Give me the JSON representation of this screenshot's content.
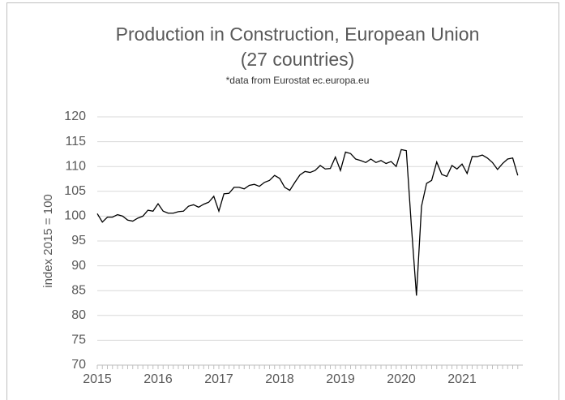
{
  "chart_data": {
    "type": "line",
    "title": "Production in Construction, European Union",
    "title_line2": "(27 countries)",
    "subtitle": "*data from Eurostat ec.europa.eu",
    "y_label": "index 2015 = 100",
    "categories": [
      "2015",
      null,
      null,
      null,
      null,
      null,
      null,
      null,
      null,
      null,
      null,
      null,
      "2016",
      null,
      null,
      null,
      null,
      null,
      null,
      null,
      null,
      null,
      null,
      null,
      "2017",
      null,
      null,
      null,
      null,
      null,
      null,
      null,
      null,
      null,
      null,
      null,
      "2018",
      null,
      null,
      null,
      null,
      null,
      null,
      null,
      null,
      null,
      null,
      null,
      "2019",
      null,
      null,
      null,
      null,
      null,
      null,
      null,
      null,
      null,
      null,
      null,
      "2020",
      null,
      null,
      null,
      null,
      null,
      null,
      null,
      null,
      null,
      null,
      null,
      "2021",
      null,
      null,
      null,
      null,
      null,
      null,
      null,
      null,
      null,
      null,
      null
    ],
    "values": [
      100.5,
      98.8,
      99.8,
      99.8,
      100.3,
      100.0,
      99.2,
      99.0,
      99.6,
      100.0,
      101.2,
      101.0,
      102.5,
      101.0,
      100.6,
      100.6,
      100.9,
      101.0,
      102.0,
      102.3,
      101.8,
      102.4,
      102.8,
      104.0,
      101.0,
      104.5,
      104.6,
      105.8,
      105.8,
      105.5,
      106.2,
      106.4,
      106.0,
      106.8,
      107.2,
      108.2,
      107.6,
      105.8,
      105.2,
      106.8,
      108.3,
      109.0,
      108.8,
      109.2,
      110.2,
      109.5,
      109.6,
      111.9,
      109.2,
      112.9,
      112.6,
      111.5,
      111.2,
      110.8,
      111.5,
      110.8,
      111.2,
      110.6,
      111.0,
      110.0,
      113.4,
      113.2,
      98.0,
      84.0,
      102.0,
      106.6,
      107.2,
      110.9,
      108.4,
      108.0,
      110.2,
      109.5,
      110.5,
      108.6,
      112.0,
      112.0,
      112.3,
      111.7,
      110.8,
      109.4,
      110.6,
      111.5,
      111.7,
      108.2
    ],
    "color": "#000000",
    "ylim": [
      70,
      120
    ],
    "yticks": [
      70,
      75,
      80,
      85,
      90,
      95,
      100,
      105,
      110,
      115,
      120
    ],
    "grid": true
  }
}
